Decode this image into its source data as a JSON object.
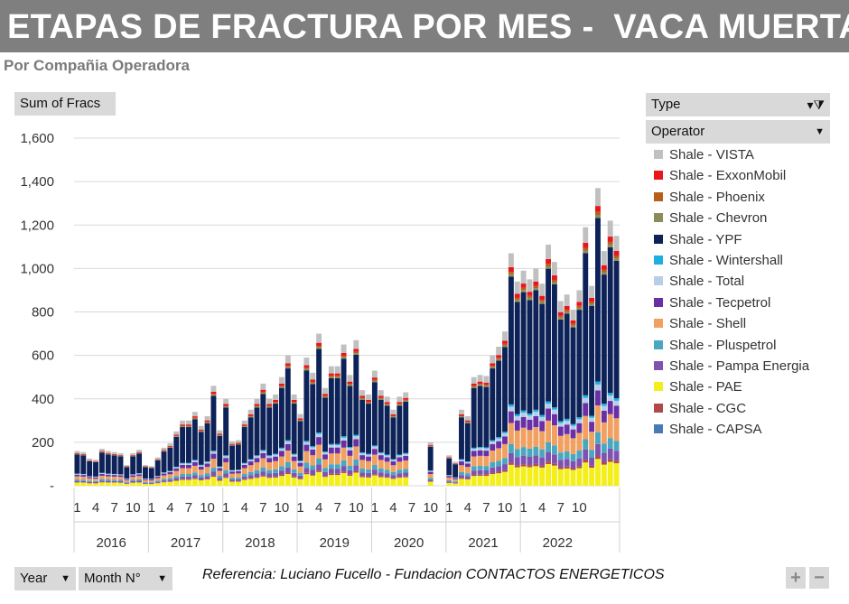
{
  "header": {
    "title": "ETAPAS DE FRACTURA POR MES -  VACA MUERTA",
    "subtitle": "Por Compañia Operadora"
  },
  "value_button": "Sum of Fracs",
  "filters": {
    "type_label": "Type",
    "operator_label": "Operator",
    "year_label": "Year",
    "month_label": "Month N°"
  },
  "reference": "Referencia:  Luciano Fucello - Fundacion CONTACTOS ENERGETICOS",
  "zoom": {
    "plus": "+",
    "minus": "−"
  },
  "chart_data": {
    "type": "bar",
    "stacked": true,
    "ylim": [
      0,
      1600
    ],
    "y_ticks": [
      "-",
      "200",
      "400",
      "600",
      "800",
      "1,000",
      "1,200",
      "1,400",
      "1,600"
    ],
    "y_tick_values": [
      0,
      200,
      400,
      600,
      800,
      1000,
      1200,
      1400,
      1600
    ],
    "grid": true,
    "legend_position": "right",
    "years": [
      "2016",
      "2017",
      "2018",
      "2019",
      "2020",
      "2021",
      "2022"
    ],
    "month_tick_labels": [
      "1",
      "4",
      "7",
      "10"
    ],
    "series": [
      {
        "name": "Shale - VISTA",
        "color": "#c0c0c0"
      },
      {
        "name": "Shale - ExxonMobil",
        "color": "#e8161b"
      },
      {
        "name": "Shale - Phoenix",
        "color": "#b5611b"
      },
      {
        "name": "Shale - Chevron",
        "color": "#8c8c5a"
      },
      {
        "name": "Shale - YPF",
        "color": "#0d2258"
      },
      {
        "name": "Shale - Wintershall",
        "color": "#1cafe0"
      },
      {
        "name": "Shale - Total",
        "color": "#b7cde8"
      },
      {
        "name": "Shale - Tecpetrol",
        "color": "#6a2fa5"
      },
      {
        "name": "Shale - Shell",
        "color": "#f0a060"
      },
      {
        "name": "Shale - Pluspetrol",
        "color": "#4ba7c0"
      },
      {
        "name": "Shale - Pampa Energia",
        "color": "#8052b0"
      },
      {
        "name": "Shale - PAE",
        "color": "#f4ef1a"
      },
      {
        "name": "Shale - CGC",
        "color": "#b04a4a"
      },
      {
        "name": "Shale - CAPSA",
        "color": "#4a7ab5"
      }
    ],
    "monthly_totals": [
      160,
      155,
      125,
      120,
      170,
      160,
      155,
      150,
      95,
      150,
      165,
      95,
      90,
      130,
      175,
      195,
      250,
      300,
      300,
      340,
      275,
      320,
      460,
      255,
      400,
      205,
      210,
      300,
      350,
      400,
      470,
      400,
      420,
      500,
      600,
      420,
      330,
      590,
      520,
      700,
      450,
      550,
      550,
      650,
      510,
      670,
      440,
      420,
      530,
      440,
      410,
      350,
      410,
      430,
      0,
      0,
      0,
      200,
      0,
      0,
      140,
      110,
      350,
      320,
      500,
      510,
      505,
      600,
      640,
      710,
      1070,
      940,
      990,
      950,
      1000,
      930,
      1110,
      1030,
      850,
      880,
      810,
      900,
      1190,
      920,
      1370,
      1080,
      1220,
      1150
    ],
    "monthly_breakdown_percent": {
      "VISTA": 6,
      "ExxonMobil": 2,
      "Phoenix": 1,
      "Chevron": 1,
      "YPF": 55,
      "Wintershall": 1,
      "Total": 2,
      "Tecpetrol": 5,
      "Shell": 9,
      "Pluspetrol": 4,
      "Pampa Energia": 4,
      "PAE": 9,
      "CGC": 1,
      "CAPSA": 0
    }
  }
}
